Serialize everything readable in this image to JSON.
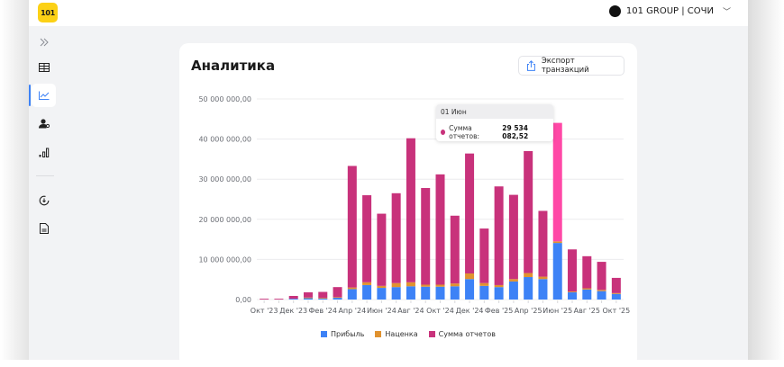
{
  "header": {
    "logo_text": "101",
    "org_name": "101 GROUP | СОЧИ"
  },
  "sidebar": {
    "items": [
      {
        "name": "expand",
        "icon": "chevrons-right-icon"
      },
      {
        "name": "table",
        "icon": "table-icon"
      },
      {
        "name": "analytics",
        "icon": "line-chart-icon",
        "active": true
      },
      {
        "name": "users",
        "icon": "user-settings-icon"
      },
      {
        "name": "reports",
        "icon": "bar-chart-icon"
      },
      {
        "name": "exchange",
        "icon": "refresh-icon"
      },
      {
        "name": "documents",
        "icon": "document-icon"
      }
    ]
  },
  "card": {
    "title": "Аналитика",
    "export_label": "Экспорт транзакций"
  },
  "tooltip": {
    "date": "01 Июн",
    "series": "Сумма отчетов:",
    "value": "29 534 082,52"
  },
  "colors": {
    "profit": "#3d82f6",
    "markup": "#e0922f",
    "reports": "#c8327b",
    "reports_highlight": "#ff48a6",
    "accent": "#3d82f6"
  },
  "chart_data": {
    "type": "bar",
    "stacked": true,
    "title": "",
    "xlabel": "",
    "ylabel": "",
    "ylim": [
      0,
      50000000
    ],
    "yticks": [
      0,
      10000000,
      20000000,
      30000000,
      40000000,
      50000000
    ],
    "ytick_labels": [
      "0,00",
      "10 000 000,00",
      "20 000 000,00",
      "30 000 000,00",
      "40 000 000,00",
      "50 000 000,00"
    ],
    "grid": true,
    "legend_position": "bottom",
    "categories": [
      "Окт '23",
      "Ноя '23",
      "Дек '23",
      "Янв '24",
      "Фев '24",
      "Мар '24",
      "Апр '24",
      "Май '24",
      "Июн '24",
      "Июл '24",
      "Авг '24",
      "Сен '24",
      "Окт '24",
      "Ноя '24",
      "Дек '24",
      "Янв '25",
      "Фев '25",
      "Мар '25",
      "Апр '25",
      "Май '25",
      "Июн '25",
      "Июл '25",
      "Авг '25",
      "Сен '25",
      "Окт '25"
    ],
    "xtick_labels": [
      "Окт '23",
      "Дек '23",
      "Фев '24",
      "Апр '24",
      "Июн '24",
      "Авг '24",
      "Окт '24",
      "Дек '24",
      "Фев '25",
      "Апр '25",
      "Июн '25",
      "Авг '25",
      "Окт '25"
    ],
    "series": [
      {
        "name": "Прибыль",
        "values": [
          0,
          0,
          200000,
          400000,
          300000,
          500000,
          2600000,
          3600000,
          2900000,
          3100000,
          3300000,
          3200000,
          3200000,
          3300000,
          5100000,
          3400000,
          3100000,
          4500000,
          5600000,
          5100000,
          14100000,
          1800000,
          2500000,
          2100000,
          1400000
        ]
      },
      {
        "name": "Наценка",
        "values": [
          0,
          0,
          0,
          100000,
          100000,
          100000,
          400000,
          700000,
          500000,
          1000000,
          1000000,
          500000,
          500000,
          700000,
          1400000,
          700000,
          500000,
          600000,
          1000000,
          600000,
          400000,
          200000,
          300000,
          300000,
          200000
        ]
      },
      {
        "name": "Сумма отчетов",
        "values": [
          200000,
          200000,
          700000,
          1300000,
          1500000,
          2500000,
          30300000,
          21700000,
          18000000,
          22400000,
          35900000,
          24100000,
          27500000,
          16900000,
          29900000,
          13600000,
          24600000,
          21000000,
          30400000,
          16400000,
          29534082.52,
          10500000,
          8000000,
          7000000,
          3800000
        ]
      }
    ],
    "highlighted_category": "Июн '25"
  },
  "legend": [
    {
      "label": "Прибыль",
      "color": "#3d82f6"
    },
    {
      "label": "Наценка",
      "color": "#e0922f"
    },
    {
      "label": "Сумма отчетов",
      "color": "#c8327b"
    }
  ]
}
